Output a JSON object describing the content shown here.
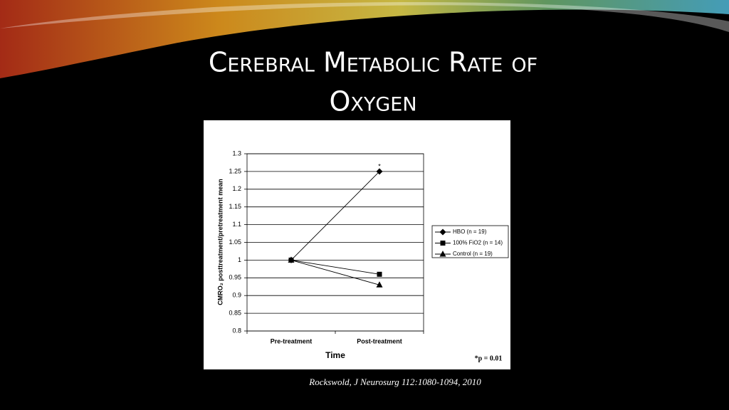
{
  "slide": {
    "title_line1": "Cerebral Metabolic Rate of",
    "title_line2": "Oxygen",
    "citation": "Rockswold, J Neurosurg 112:1080-1094, 2010"
  },
  "chart_data": {
    "type": "line",
    "categories": [
      "Pre-treatment",
      "Post-treatment"
    ],
    "series": [
      {
        "name": "HBO (n = 19)",
        "color": "#000000",
        "marker": "diamond",
        "values": [
          1.0,
          1.25
        ]
      },
      {
        "name": "100% FiO2 (n = 14)",
        "color": "#000000",
        "marker": "square",
        "values": [
          1.0,
          0.96
        ]
      },
      {
        "name": "Control (n = 19)",
        "color": "#000000",
        "marker": "triangle",
        "values": [
          1.0,
          0.93
        ]
      }
    ],
    "ylim": [
      0.8,
      1.3
    ],
    "yticks": [
      0.8,
      0.85,
      0.9,
      0.95,
      1,
      1.05,
      1.1,
      1.15,
      1.2,
      1.25,
      1.3
    ],
    "grid": true,
    "xlabel": "Time",
    "ylabel": "CMRO₂ posttreatment/pretreatment mean",
    "point_annotation": "*",
    "footnote": "*p = 0.01",
    "legend": "right"
  }
}
